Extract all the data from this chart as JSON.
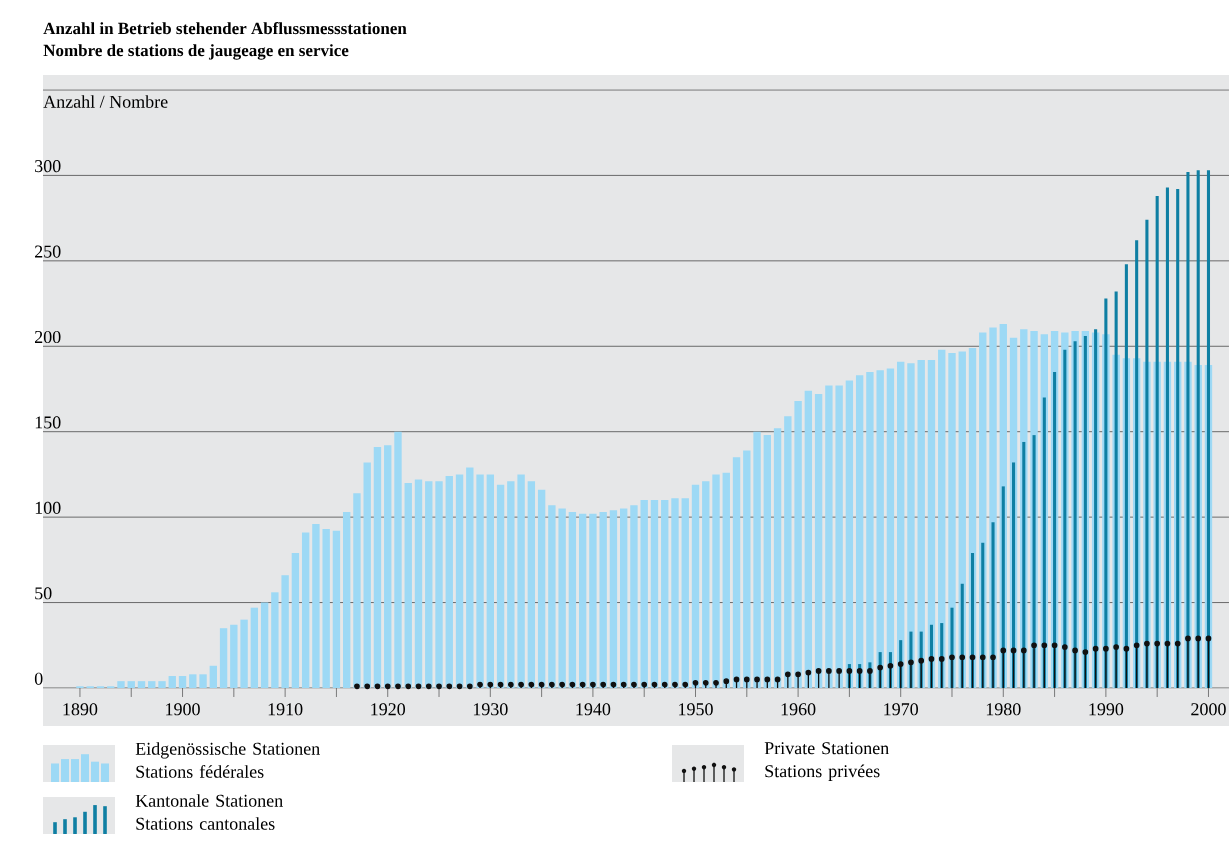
{
  "chart_data": {
    "type": "bar",
    "title": "Anzahl in Betrieb stehender Abflussmessstationen",
    "subtitle": "Nombre de stations de jaugeage en service",
    "ylabel": "Anzahl / Nombre",
    "x": [
      1890,
      1891,
      1892,
      1893,
      1894,
      1895,
      1896,
      1897,
      1898,
      1899,
      1900,
      1901,
      1902,
      1903,
      1904,
      1905,
      1906,
      1907,
      1908,
      1909,
      1910,
      1911,
      1912,
      1913,
      1914,
      1915,
      1916,
      1917,
      1918,
      1919,
      1920,
      1921,
      1922,
      1923,
      1924,
      1925,
      1926,
      1927,
      1928,
      1929,
      1930,
      1931,
      1932,
      1933,
      1934,
      1935,
      1936,
      1937,
      1938,
      1939,
      1940,
      1941,
      1942,
      1943,
      1944,
      1945,
      1946,
      1947,
      1948,
      1949,
      1950,
      1951,
      1952,
      1953,
      1954,
      1955,
      1956,
      1957,
      1958,
      1959,
      1960,
      1961,
      1962,
      1963,
      1964,
      1965,
      1966,
      1967,
      1968,
      1969,
      1970,
      1971,
      1972,
      1973,
      1974,
      1975,
      1976,
      1977,
      1978,
      1979,
      1980,
      1981,
      1982,
      1983,
      1984,
      1985,
      1986,
      1987,
      1988,
      1989,
      1990,
      1991,
      1992,
      1993,
      1994,
      1995,
      1996,
      1997,
      1998,
      1999,
      2000
    ],
    "xlim": [
      1886.4,
      2002
    ],
    "xticks": [
      1890,
      {
        "value": 1895,
        "label": null
      },
      1900,
      {
        "value": 1905,
        "label": null
      },
      1910,
      {
        "value": 1915,
        "label": null
      },
      1920,
      {
        "value": 1925,
        "label": null
      },
      1930,
      {
        "value": 1935,
        "label": null
      },
      1940,
      {
        "value": 1945,
        "label": null
      },
      1950,
      {
        "value": 1955,
        "label": null
      },
      1960,
      {
        "value": 1965,
        "label": null
      },
      1970,
      {
        "value": 1975,
        "label": null
      },
      1980,
      {
        "value": 1985,
        "label": null
      },
      1990,
      {
        "value": 1995,
        "label": null
      },
      2000
    ],
    "ylim": [
      0,
      350
    ],
    "yticks": [
      0,
      50,
      100,
      150,
      200,
      250,
      300,
      {
        "value": 350,
        "label": null
      }
    ],
    "grid": "y",
    "legend": "bottom",
    "marker": "circle",
    "series": [
      {
        "name": "Eidgenössische Stationen\nStations fédérales",
        "color": "#9dd9f5",
        "values": [
          1,
          1,
          1,
          1,
          4,
          4,
          4,
          4,
          4,
          7,
          7,
          8,
          8,
          13,
          35,
          37,
          40,
          47,
          50,
          56,
          66,
          79,
          91,
          96,
          93,
          92,
          103,
          114,
          132,
          141,
          142,
          150,
          120,
          122,
          121,
          121,
          124,
          125,
          129,
          125,
          125,
          119,
          121,
          125,
          121,
          116,
          107,
          105,
          103,
          102,
          102,
          103,
          104,
          105,
          107,
          110,
          110,
          110,
          111,
          111,
          119,
          121,
          125,
          126,
          135,
          139,
          150,
          148,
          152,
          159,
          168,
          174,
          172,
          177,
          177,
          180,
          183,
          185,
          186,
          187,
          191,
          190,
          192,
          192,
          198,
          196,
          197,
          199,
          208,
          211,
          213,
          205,
          210,
          209,
          207,
          209,
          208,
          209,
          209,
          208,
          207,
          195,
          193,
          193,
          191,
          191,
          191,
          191,
          191,
          189,
          189
        ]
      },
      {
        "name": "Kantonale Stationen\nStations cantonales",
        "color": "#0f7fa3",
        "values": [
          null,
          null,
          null,
          null,
          null,
          null,
          null,
          null,
          null,
          null,
          null,
          null,
          null,
          null,
          null,
          null,
          null,
          null,
          null,
          null,
          null,
          null,
          null,
          null,
          null,
          null,
          null,
          null,
          null,
          null,
          null,
          null,
          null,
          null,
          null,
          null,
          null,
          null,
          null,
          null,
          null,
          null,
          null,
          null,
          null,
          null,
          null,
          null,
          null,
          null,
          null,
          null,
          null,
          null,
          null,
          null,
          null,
          null,
          null,
          null,
          null,
          null,
          null,
          null,
          null,
          null,
          null,
          null,
          null,
          null,
          null,
          null,
          null,
          null,
          null,
          14,
          14,
          15,
          21,
          21,
          28,
          33,
          33,
          37,
          38,
          47,
          61,
          79,
          85,
          97,
          118,
          132,
          144,
          148,
          170,
          185,
          198,
          203,
          206,
          210,
          228,
          232,
          248,
          262,
          274,
          288,
          293,
          292,
          302,
          303,
          303
        ]
      },
      {
        "name": "Private Stationen\nStations privées",
        "type": "lollipop",
        "color": "#111111",
        "values": [
          null,
          null,
          null,
          null,
          null,
          null,
          null,
          null,
          null,
          null,
          null,
          null,
          null,
          null,
          null,
          null,
          null,
          null,
          null,
          null,
          null,
          null,
          null,
          null,
          null,
          null,
          null,
          1,
          1,
          1,
          1,
          1,
          1,
          1,
          1,
          1,
          1,
          1,
          1,
          2,
          2,
          2,
          2,
          2,
          2,
          2,
          2,
          2,
          2,
          2,
          2,
          2,
          2,
          2,
          2,
          2,
          2,
          2,
          2,
          2,
          3,
          3,
          3,
          4,
          5,
          5,
          5,
          5,
          5,
          8,
          8,
          9,
          10,
          10,
          10,
          10,
          10,
          10,
          12,
          13,
          14,
          15,
          16,
          17,
          17,
          18,
          18,
          18,
          18,
          18,
          22,
          22,
          22,
          25,
          25,
          25,
          24,
          22,
          21,
          23,
          23,
          24,
          23,
          25,
          26,
          26,
          26,
          26,
          29,
          29,
          29
        ]
      }
    ]
  }
}
